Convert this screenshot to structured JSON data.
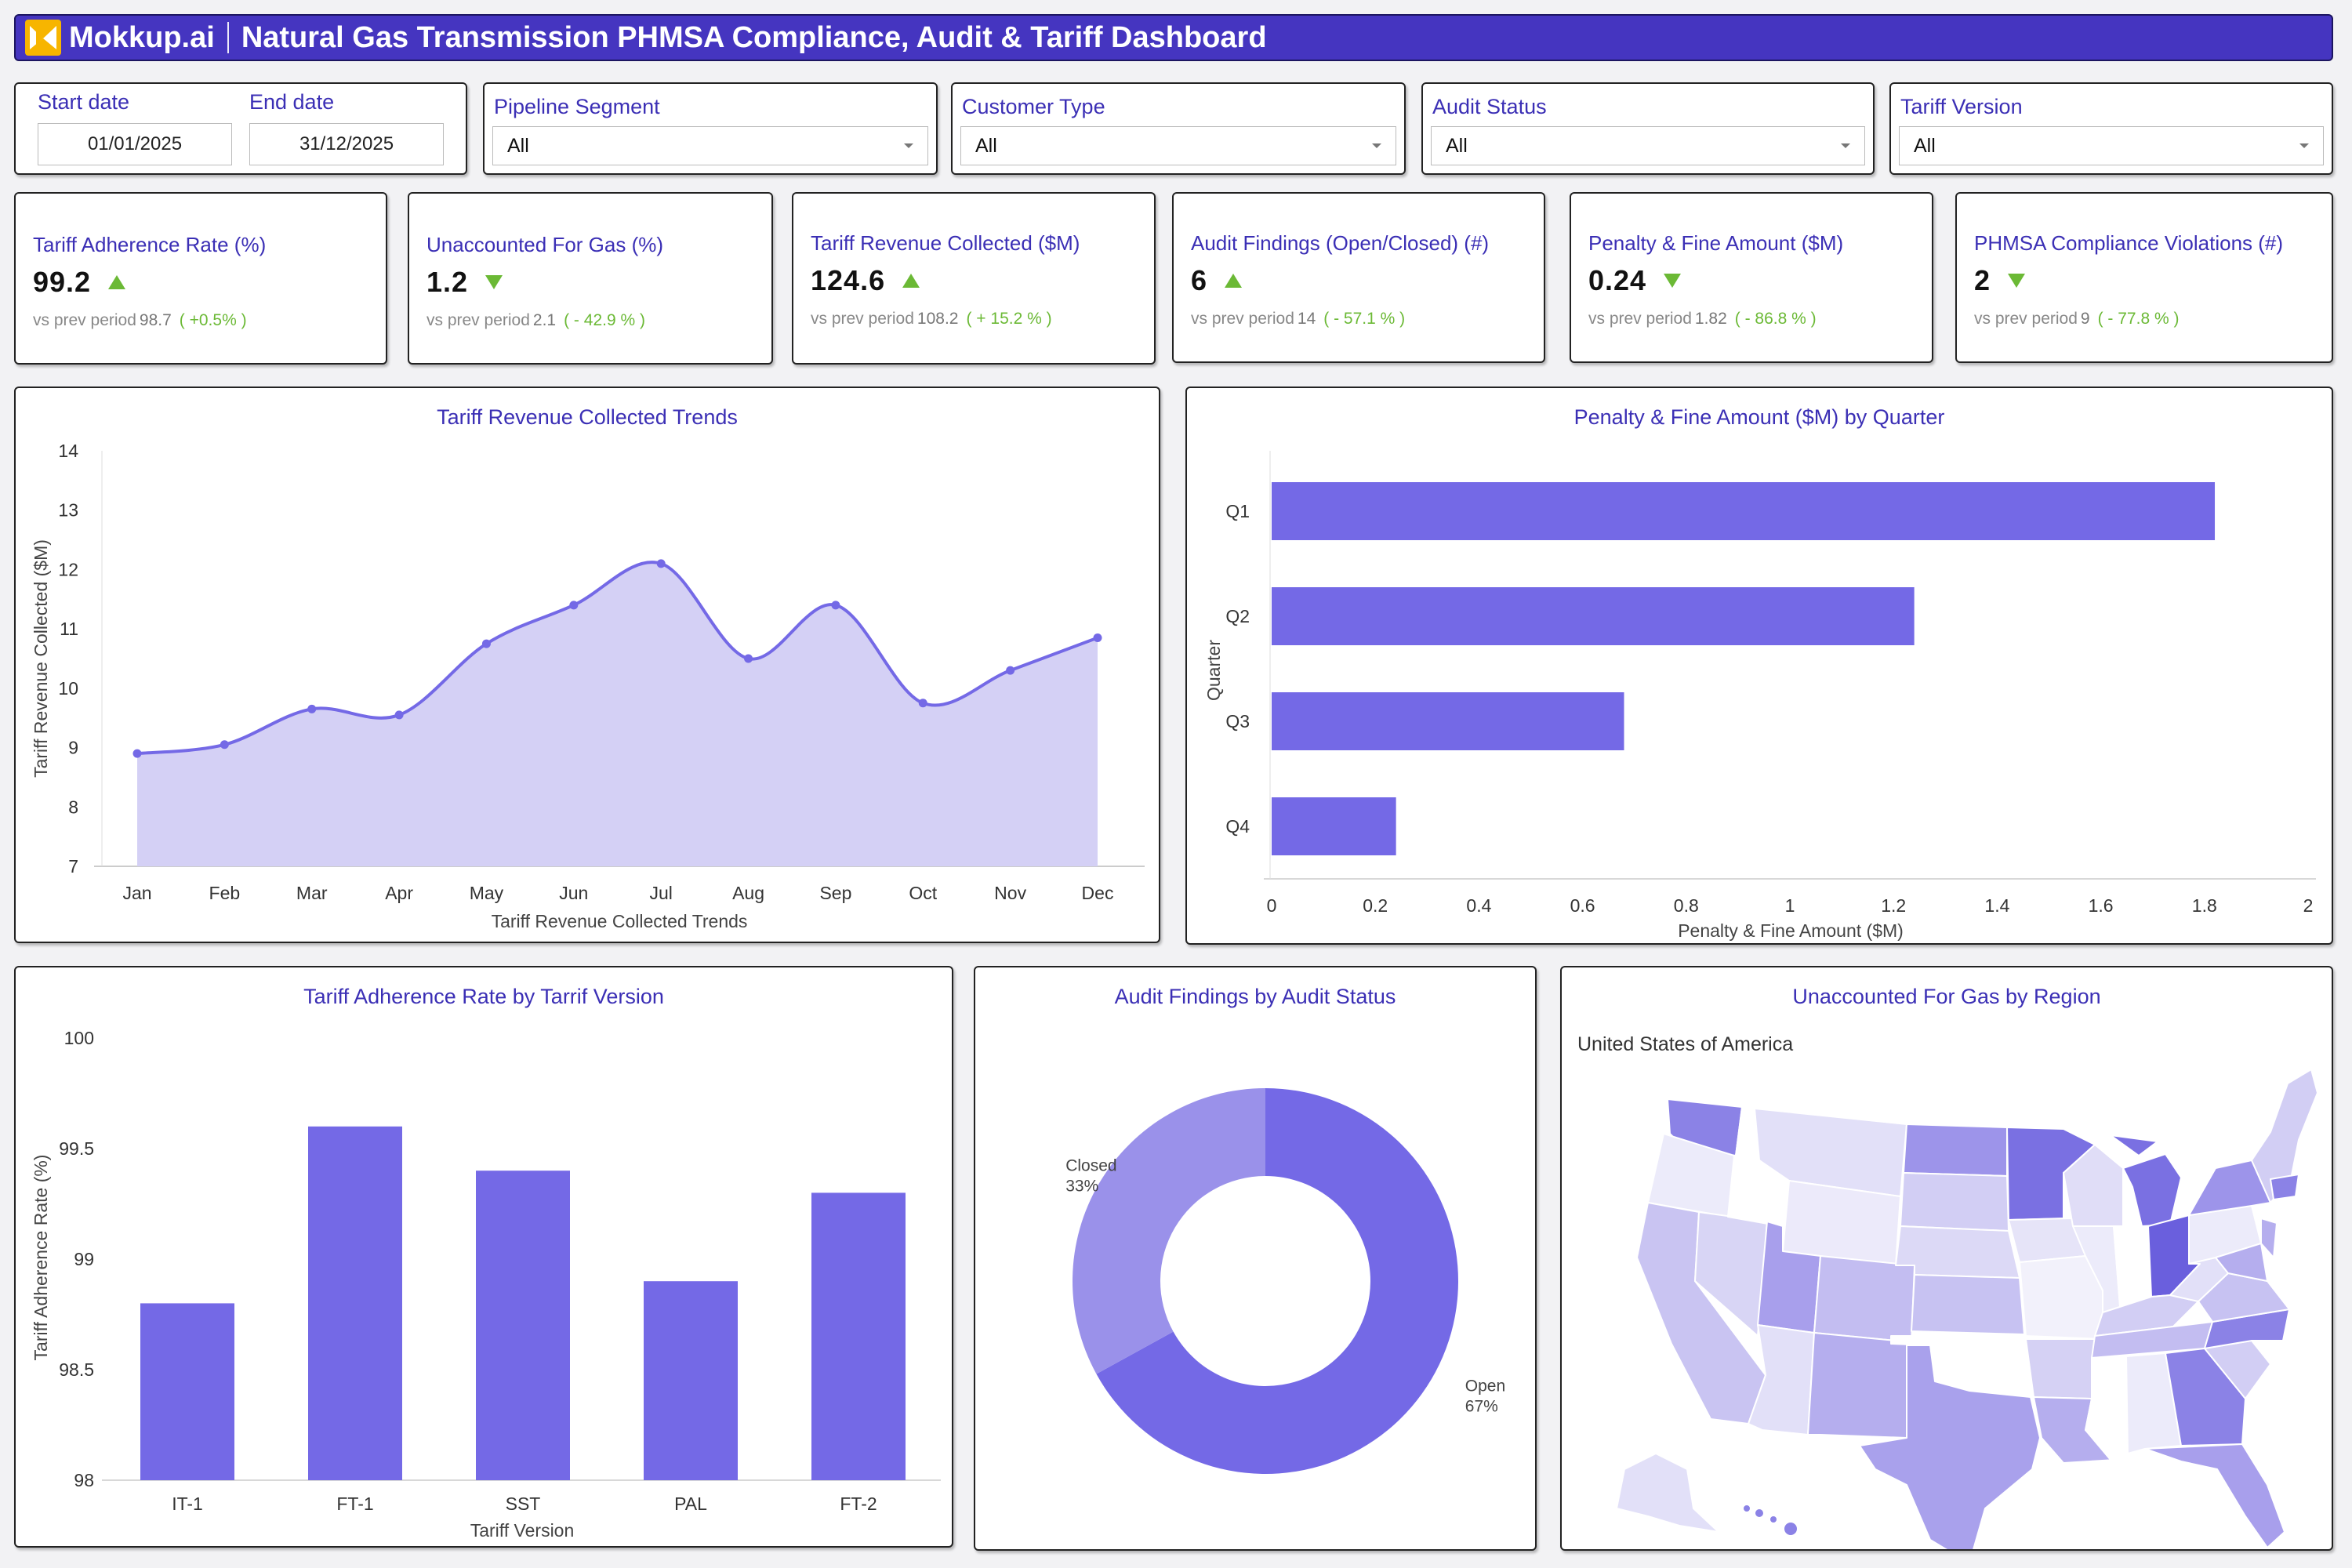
{
  "header": {
    "logo": "Mokkup.ai",
    "title": "Natural Gas Transmission PHMSA Compliance, Audit & Tariff Dashboard"
  },
  "filters": {
    "start_label": "Start date",
    "start_value": "01/01/2025",
    "end_label": "End date",
    "end_value": "31/12/2025",
    "pipeline": {
      "label": "Pipeline Segment",
      "value": "All"
    },
    "customer": {
      "label": "Customer Type",
      "value": "All"
    },
    "audit": {
      "label": "Audit Status",
      "value": "All"
    },
    "tariff": {
      "label": "Tariff Version",
      "value": "All"
    }
  },
  "kpis": [
    {
      "title": "Tariff Adherence Rate (%)",
      "value": "99.2",
      "trend": "up",
      "prev_label": "vs prev period",
      "prev_value": "98.7",
      "delta": "( +0.5% )"
    },
    {
      "title": "Unaccounted For Gas (%)",
      "value": "1.2",
      "trend": "down",
      "prev_label": "vs prev period",
      "prev_value": "2.1",
      "delta": "( - 42.9 % )"
    },
    {
      "title": "Tariff Revenue Collected ($M)",
      "value": "124.6",
      "trend": "up",
      "prev_label": "vs prev period",
      "prev_value": "108.2",
      "delta": "( + 15.2 % )"
    },
    {
      "title": "Audit Findings (Open/Closed) (#)",
      "value": "6",
      "trend": "up",
      "prev_label": "vs prev period",
      "prev_value": "14",
      "delta": "( - 57.1 % )"
    },
    {
      "title": "Penalty & Fine Amount ($M)",
      "value": "0.24",
      "trend": "down",
      "prev_label": "vs prev period",
      "prev_value": "1.82",
      "delta": "( - 86.8 % )"
    },
    {
      "title": "PHMSA Compliance Violations (#)",
      "value": "2",
      "trend": "down",
      "prev_label": "vs prev period",
      "prev_value": "9",
      "delta": "( - 77.8 % )"
    }
  ],
  "titles": {
    "revenue": "Tariff Revenue Collected Trends",
    "penalty": "Penalty & Fine Amount ($M) by Quarter",
    "adherence": "Tariff Adherence Rate by Tarrif Version",
    "audit": "Audit Findings by Audit Status",
    "ufg": "Unaccounted For Gas by Region"
  },
  "map": {
    "subtitle": "United States of America"
  },
  "colors": {
    "accent": "#7469e6",
    "area_fill": "#d4d0f5",
    "title": "#3b2fb5",
    "header": "#4535c0",
    "positive": "#6bb935"
  },
  "chart_data": [
    {
      "id": "revenue",
      "type": "area",
      "categories": [
        "Jan",
        "Feb",
        "Mar",
        "Apr",
        "May",
        "Jun",
        "Jul",
        "Aug",
        "Sep",
        "Oct",
        "Nov",
        "Dec"
      ],
      "values": [
        8.9,
        9.05,
        9.65,
        9.55,
        10.75,
        11.4,
        12.1,
        10.5,
        11.4,
        9.75,
        10.3,
        10.85
      ],
      "ylim": [
        7,
        14
      ],
      "yticks": [
        "7",
        "8",
        "9",
        "10",
        "11",
        "12",
        "13",
        "14"
      ],
      "xlabel": "Tariff Revenue Collected Trends",
      "ylabel": "Tariff Revenue Collected ($M)"
    },
    {
      "id": "penalty",
      "type": "bar",
      "orientation": "horizontal",
      "categories": [
        "Q1",
        "Q2",
        "Q3",
        "Q4"
      ],
      "values": [
        1.82,
        1.24,
        0.68,
        0.24
      ],
      "xlim": [
        0,
        2
      ],
      "xticks": [
        "0",
        "0.2",
        "0.4",
        "0.6",
        "0.8",
        "1",
        "1.2",
        "1.4",
        "1.6",
        "1.8",
        "2"
      ],
      "xlabel": "Penalty & Fine Amount ($M)",
      "ylabel": "Quarter"
    },
    {
      "id": "adherence",
      "type": "bar",
      "categories": [
        "IT-1",
        "FT-1",
        "SST",
        "PAL",
        "FT-2"
      ],
      "values": [
        98.8,
        99.6,
        99.4,
        98.9,
        99.3
      ],
      "ylim": [
        98,
        100
      ],
      "yticks": [
        "98",
        "98.5",
        "99",
        "99.5",
        "100"
      ],
      "xlabel": "Tariff Version",
      "ylabel": "Tariff Adherence Rate (%)"
    },
    {
      "id": "audit",
      "type": "pie",
      "donut": true,
      "slices": [
        {
          "name": "Open",
          "pct": "67%",
          "value": 67
        },
        {
          "name": "Closed",
          "pct": "33%",
          "value": 33
        }
      ]
    }
  ]
}
